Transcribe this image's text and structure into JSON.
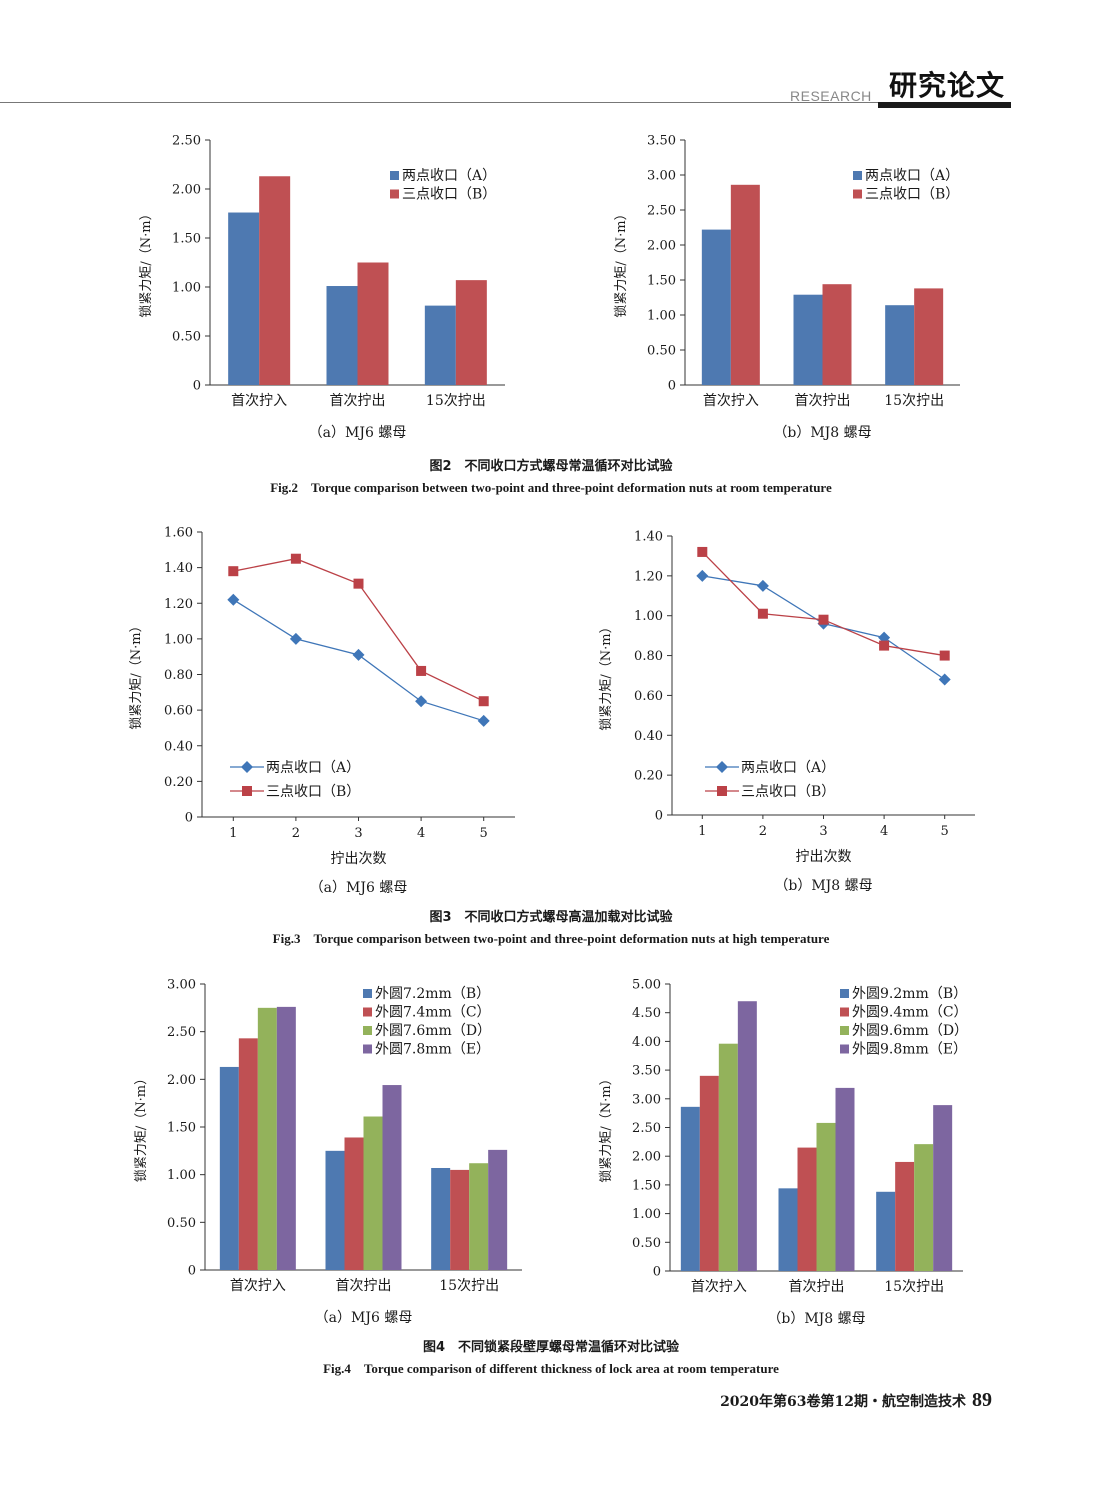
{
  "header": {
    "research_label": "RESEARCH",
    "section_title": "研究论文"
  },
  "figures": [
    {
      "caption_cn": "图2　不同收口方式螺母常温循环对比试验",
      "caption_en": "Fig.2　Torque comparison between two-point and three-point deformation nuts at room temperature"
    },
    {
      "caption_cn": "图3　不同收口方式螺母高温加载对比试验",
      "caption_en": "Fig.3　Torque comparison between two-point and three-point deformation nuts at high temperature"
    },
    {
      "caption_cn": "图4　不同锁紧段壁厚螺母常温循环对比试验",
      "caption_en": "Fig.4　Torque comparison of different thickness of lock area at room temperature"
    }
  ],
  "chart_data": [
    {
      "id": "fig2a",
      "type": "bar",
      "subtitle": "（a）MJ6 螺母",
      "ylabel": "锁紧力矩/（N·m）",
      "xlabel": "",
      "categories": [
        "首次拧入",
        "首次拧出",
        "15次拧出"
      ],
      "ylim": [
        0,
        2.5
      ],
      "yticks": [
        "0",
        "0.50",
        "1.00",
        "1.50",
        "2.00",
        "2.50"
      ],
      "legend_position": "top-right",
      "series": [
        {
          "name": "两点收口（A）",
          "color": "#4e79b1",
          "values": [
            1.76,
            1.01,
            0.81
          ]
        },
        {
          "name": "三点收口（B）",
          "color": "#bf5053",
          "values": [
            2.13,
            1.25,
            1.07
          ]
        }
      ]
    },
    {
      "id": "fig2b",
      "type": "bar",
      "subtitle": "（b）MJ8 螺母",
      "ylabel": "锁紧力矩/（N·m）",
      "xlabel": "",
      "categories": [
        "首次拧入",
        "首次拧出",
        "15次拧出"
      ],
      "ylim": [
        0,
        3.5
      ],
      "yticks": [
        "0",
        "0.50",
        "1.00",
        "1.50",
        "2.00",
        "2.50",
        "3.00",
        "3.50"
      ],
      "legend_position": "top-right",
      "series": [
        {
          "name": "两点收口（A）",
          "color": "#4e79b1",
          "values": [
            2.22,
            1.29,
            1.14
          ]
        },
        {
          "name": "三点收口（B）",
          "color": "#bf5053",
          "values": [
            2.86,
            1.44,
            1.38
          ]
        }
      ]
    },
    {
      "id": "fig3a",
      "type": "line",
      "subtitle": "（a）MJ6 螺母",
      "ylabel": "锁紧力矩/（N·m）",
      "xlabel": "拧出次数",
      "x": [
        1,
        2,
        3,
        4,
        5
      ],
      "ylim": [
        0,
        1.6
      ],
      "yticks": [
        "0",
        "0.20",
        "0.40",
        "0.60",
        "0.80",
        "1.00",
        "1.20",
        "1.40",
        "1.60"
      ],
      "legend_position": "bottom-left",
      "series": [
        {
          "name": "两点收口（A）",
          "color": "#3f76b8",
          "marker": "diamond",
          "values": [
            1.22,
            1.0,
            0.91,
            0.65,
            0.54
          ]
        },
        {
          "name": "三点收口（B）",
          "color": "#bb4147",
          "marker": "square",
          "values": [
            1.38,
            1.45,
            1.31,
            0.82,
            0.65
          ]
        }
      ]
    },
    {
      "id": "fig3b",
      "type": "line",
      "subtitle": "（b）MJ8 螺母",
      "ylabel": "锁紧力矩/（N·m）",
      "xlabel": "拧出次数",
      "x": [
        1,
        2,
        3,
        4,
        5
      ],
      "ylim": [
        0,
        1.4
      ],
      "yticks": [
        "0",
        "0.20",
        "0.40",
        "0.60",
        "0.80",
        "1.00",
        "1.20",
        "1.40"
      ],
      "legend_position": "bottom-left",
      "series": [
        {
          "name": "两点收口（A）",
          "color": "#3f76b8",
          "marker": "diamond",
          "values": [
            1.2,
            1.15,
            0.96,
            0.89,
            0.68
          ]
        },
        {
          "name": "三点收口（B）",
          "color": "#bb4147",
          "marker": "square",
          "values": [
            1.32,
            1.01,
            0.98,
            0.85,
            0.8
          ]
        }
      ]
    },
    {
      "id": "fig4a",
      "type": "bar",
      "subtitle": "（a）MJ6 螺母",
      "ylabel": "锁紧力矩/（N·m）",
      "xlabel": "",
      "categories": [
        "首次拧入",
        "首次拧出",
        "15次拧出"
      ],
      "ylim": [
        0,
        3.0
      ],
      "yticks": [
        "0",
        "0.50",
        "1.00",
        "1.50",
        "2.00",
        "2.50",
        "3.00"
      ],
      "legend_position": "top-right",
      "series": [
        {
          "name": "外圆7.2mm（B）",
          "color": "#4e79b1",
          "values": [
            2.13,
            1.25,
            1.07
          ]
        },
        {
          "name": "外圆7.4mm（C）",
          "color": "#bf5053",
          "values": [
            2.43,
            1.39,
            1.05
          ]
        },
        {
          "name": "外圆7.6mm（D）",
          "color": "#93b25b",
          "values": [
            2.75,
            1.61,
            1.12
          ]
        },
        {
          "name": "外圆7.8mm（E）",
          "color": "#7d66a0",
          "values": [
            2.76,
            1.94,
            1.26
          ]
        }
      ]
    },
    {
      "id": "fig4b",
      "type": "bar",
      "subtitle": "（b）MJ8 螺母",
      "ylabel": "锁紧力矩/（N·m）",
      "xlabel": "",
      "categories": [
        "首次拧入",
        "首次拧出",
        "15次拧出"
      ],
      "ylim": [
        0,
        5.0
      ],
      "yticks": [
        "0",
        "0.50",
        "1.00",
        "1.50",
        "2.00",
        "2.50",
        "3.00",
        "3.50",
        "4.00",
        "4.50",
        "5.00"
      ],
      "legend_position": "top-right",
      "series": [
        {
          "name": "外圆9.2mm（B）",
          "color": "#4e79b1",
          "values": [
            2.86,
            1.44,
            1.38
          ]
        },
        {
          "name": "外圆9.4mm（C）",
          "color": "#bf5053",
          "values": [
            3.4,
            2.15,
            1.9
          ]
        },
        {
          "name": "外圆9.6mm（D）",
          "color": "#93b25b",
          "values": [
            3.96,
            2.58,
            2.21
          ]
        },
        {
          "name": "外圆9.8mm（E）",
          "color": "#7d66a0",
          "values": [
            4.7,
            3.19,
            2.89
          ]
        }
      ]
    }
  ],
  "footer": {
    "journal": "2020年第63卷第12期・航空制造技术",
    "page_number": "89"
  }
}
